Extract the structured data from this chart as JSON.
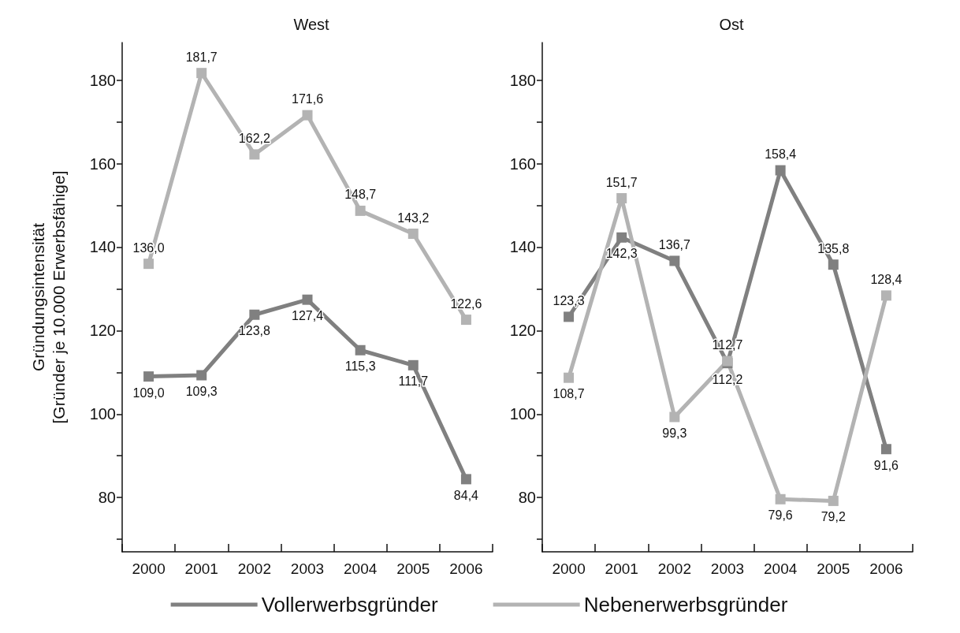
{
  "chart_data": [
    {
      "type": "line",
      "title": "West",
      "ylabel": "Gründungsintensität\n[Gründer je 10.000 Erwerbsfähige]",
      "categories": [
        "2000",
        "2001",
        "2002",
        "2003",
        "2004",
        "2005",
        "2006"
      ],
      "series": [
        {
          "name": "Vollerwerbsgründer",
          "color": "#808080",
          "values": [
            109.0,
            109.3,
            123.8,
            127.4,
            115.3,
            111.7,
            84.4
          ],
          "value_labels": [
            "109,0",
            "109,3",
            "123,8",
            "127,4",
            "115,3",
            "111,7",
            "84,4"
          ]
        },
        {
          "name": "Nebenerwerbsgründer",
          "color": "#b3b3b3",
          "values": [
            136.0,
            181.7,
            162.2,
            171.6,
            148.7,
            143.2,
            122.6
          ],
          "value_labels": [
            "136,0",
            "181,7",
            "162,2",
            "171,6",
            "148,7",
            "143,2",
            "122,6"
          ]
        }
      ],
      "ylim": [
        67,
        189
      ],
      "yticks": [
        {
          "value": 70,
          "label": null
        },
        80,
        {
          "value": 90,
          "label": null
        },
        100,
        {
          "value": 110,
          "label": null
        },
        120,
        {
          "value": 130,
          "label": null
        },
        140,
        {
          "value": 150,
          "label": null
        },
        160,
        {
          "value": 170,
          "label": null
        },
        180
      ],
      "marker": "square",
      "line_style": "solid",
      "grid": false,
      "legend": "bottom"
    },
    {
      "type": "line",
      "title": "Ost",
      "categories": [
        "2000",
        "2001",
        "2002",
        "2003",
        "2004",
        "2005",
        "2006"
      ],
      "series": [
        {
          "name": "Vollerwerbsgründer",
          "color": "#808080",
          "values": [
            123.3,
            142.3,
            136.7,
            112.2,
            158.4,
            135.8,
            91.6
          ],
          "value_labels": [
            "123,3",
            "142,3",
            "136,7",
            "112,2",
            "158,4",
            "135,8",
            "91,6"
          ]
        },
        {
          "name": "Nebenerwerbsgründer",
          "color": "#b3b3b3",
          "values": [
            108.7,
            151.7,
            99.3,
            112.7,
            79.6,
            79.2,
            128.4
          ],
          "value_labels": [
            "108,7",
            "151,7",
            "99,3",
            "112,7",
            "79,6",
            "79,2",
            "128,4"
          ]
        }
      ],
      "ylim": [
        67,
        189
      ],
      "yticks": [
        {
          "value": 70,
          "label": null
        },
        80,
        {
          "value": 90,
          "label": null
        },
        100,
        {
          "value": 110,
          "label": null
        },
        120,
        {
          "value": 130,
          "label": null
        },
        140,
        {
          "value": 150,
          "label": null
        },
        160,
        {
          "value": 170,
          "label": null
        },
        180
      ],
      "marker": "square",
      "line_style": "solid",
      "grid": false,
      "legend": "bottom"
    }
  ]
}
